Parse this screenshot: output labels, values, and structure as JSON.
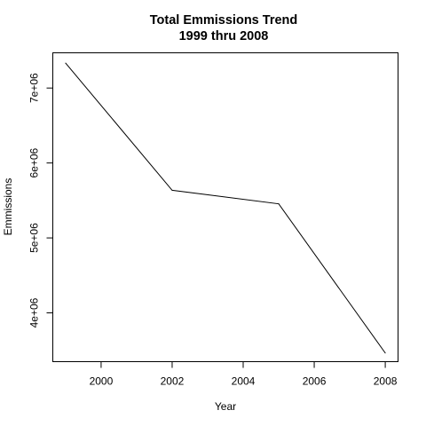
{
  "chart_data": {
    "type": "line",
    "title": "Total Emmissions Trend",
    "subtitle": "1999 thru 2008",
    "xlabel": "Year",
    "ylabel": "Emmissions",
    "x": [
      1999,
      2002,
      2005,
      2008
    ],
    "series": [
      {
        "values": [
          7332967,
          5635780,
          5454703,
          3464206
        ],
        "color": "#000000"
      }
    ],
    "xlim": [
      1998.64,
      2008.36
    ],
    "ylim": [
      3349000,
      7470000
    ],
    "x_ticks": [
      2000,
      2002,
      2004,
      2006,
      2008
    ],
    "x_tick_labels": [
      "2000",
      "2002",
      "2004",
      "2006",
      "2008"
    ],
    "y_ticks": [
      4000000,
      5000000,
      6000000,
      7000000
    ],
    "y_tick_labels": [
      "4e+06",
      "5e+06",
      "6e+06",
      "7e+06"
    ],
    "grid": false,
    "legend": "none"
  }
}
